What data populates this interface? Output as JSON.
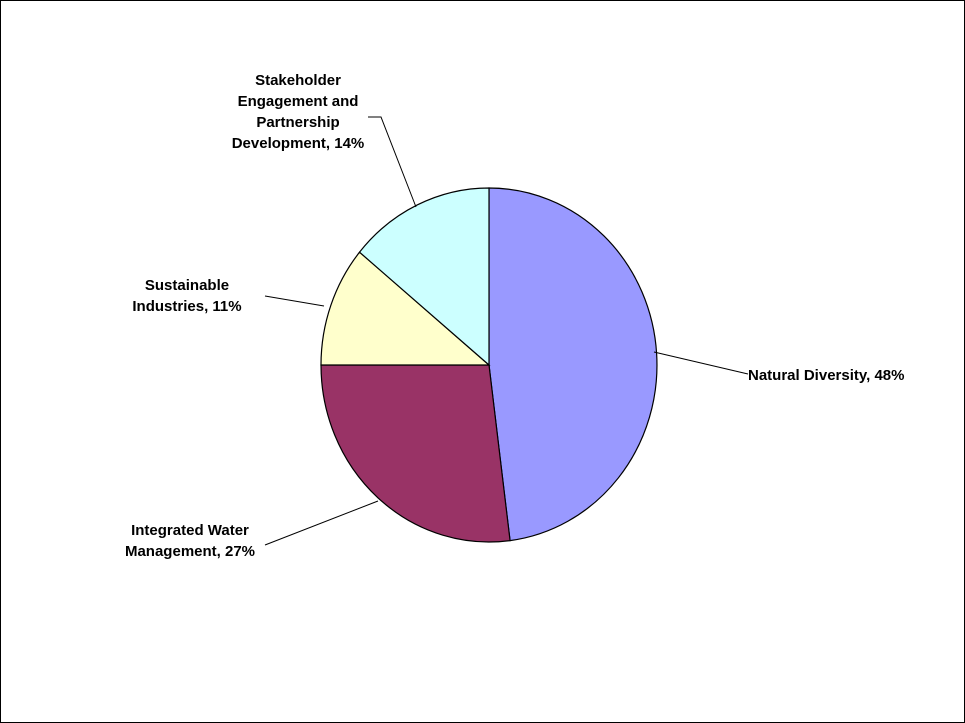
{
  "chart_data": {
    "type": "pie",
    "start_angle_deg": 0,
    "direction": "clockwise",
    "slices": [
      {
        "label": "Natural Diversity",
        "percent_label": "48%",
        "value": 48,
        "color": "#9999ff"
      },
      {
        "label": "Integrated Water Management",
        "percent_label": "27%",
        "value": 27,
        "color": "#993366"
      },
      {
        "label": "Sustainable Industries",
        "percent_label": "11%",
        "value": 11,
        "color": "#ffffcc"
      },
      {
        "label": "Stakeholder Engagement and Partnership Development",
        "percent_label": "14%",
        "value": 14,
        "color": "#ccffff"
      }
    ],
    "data_labels": [
      {
        "lines": [
          "Natural Diversity, 48%"
        ]
      },
      {
        "lines": [
          "Integrated Water",
          "Management, 27%"
        ]
      },
      {
        "lines": [
          "Sustainable",
          "Industries, 11%"
        ]
      },
      {
        "lines": [
          "Stakeholder",
          "Engagement and",
          "Partnership",
          "Development, 14%"
        ]
      }
    ],
    "legend": "none"
  }
}
